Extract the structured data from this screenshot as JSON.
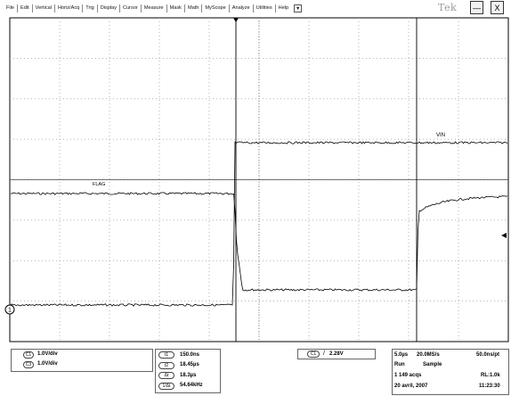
{
  "menu": {
    "items": [
      "File",
      "Edit",
      "Vertical",
      "Horiz/Acq",
      "Trig",
      "Display",
      "Cursor",
      "Measure",
      "Mask",
      "Math",
      "MyScope",
      "Analyze",
      "Utilities",
      "Help"
    ],
    "dropdown_glyph": "▾"
  },
  "brand": "Tek",
  "window_buttons": {
    "minimize": "—",
    "close": "X"
  },
  "traces": {
    "vin_label": "VIN",
    "flag_label": "FLAG",
    "ch1_marker": "1"
  },
  "channels": {
    "c1": {
      "tag": "C1",
      "scale": "1.0V/div"
    },
    "c3": {
      "tag": "C3",
      "scale": "1.0V/div"
    }
  },
  "cursors": [
    {
      "tag": "t1",
      "value": "150.0ns"
    },
    {
      "tag": "t2",
      "value": "18.45µs"
    },
    {
      "tag": "Δt",
      "value": "18.3µs"
    },
    {
      "tag": "1/Δt",
      "value": "54.64kHz"
    }
  ],
  "trigger": {
    "tag": "C1",
    "slope": "/",
    "level": "2.28V"
  },
  "acquisition": {
    "time_div": "5.0µs",
    "sample_rate": "20.0MS/s",
    "pt_time": "50.0ns/pt",
    "state": "Run",
    "mode": "Sample",
    "acqs": "1 149 acqs",
    "record_length": "RL:1.0k",
    "date": "20 avril, 2007",
    "time": "11:23:30"
  }
}
